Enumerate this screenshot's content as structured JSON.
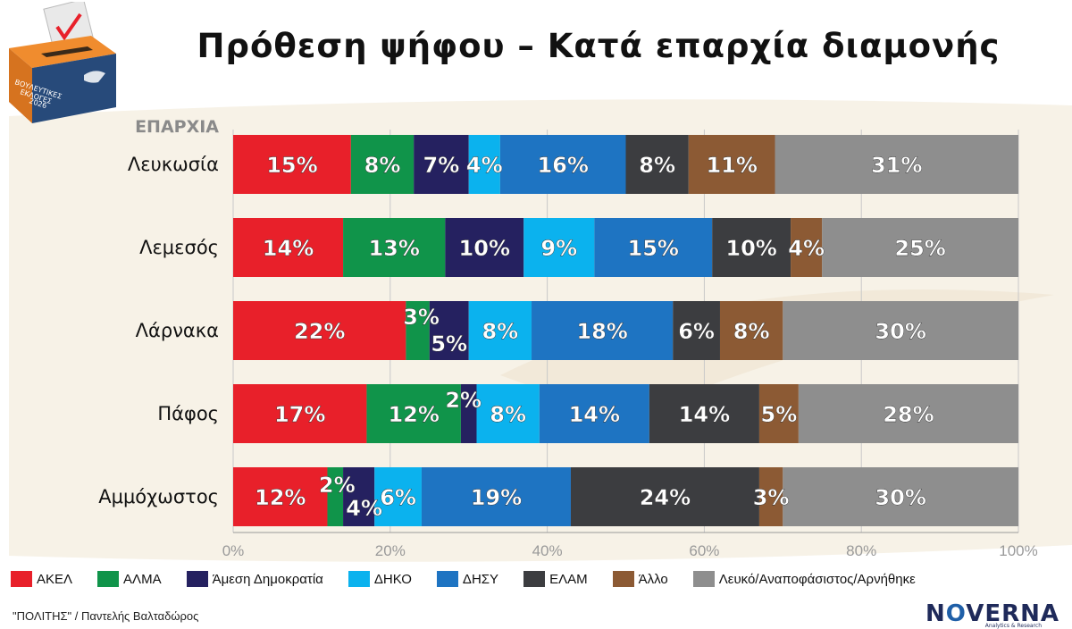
{
  "header": {
    "title": "Πρόθεση ψήφου – Κατά επαρχία διαμονής",
    "ballot_box": {
      "line1": "ΒΟΥΛΕΥΤΙΚΕΣ",
      "line2": "ΕΚΛΟΓΕΣ",
      "line3": "2026"
    }
  },
  "chart_data": {
    "type": "bar",
    "orientation": "horizontal",
    "stacked": true,
    "category_axis_label": "ΕΠΑΡΧΙΑ",
    "categories": [
      "Λευκωσία",
      "Λεμεσός",
      "Λάρνακα",
      "Πάφος",
      "Αμμόχωστος"
    ],
    "xlim": [
      0,
      100
    ],
    "x_ticks": [
      0,
      20,
      40,
      60,
      80,
      100
    ],
    "x_tick_labels": [
      "0%",
      "20%",
      "40%",
      "60%",
      "80%",
      "100%"
    ],
    "legend_position": "bottom",
    "series": [
      {
        "name": "ΑΚΕΛ",
        "color": "#e8202a",
        "values": [
          15,
          14,
          22,
          17,
          12
        ],
        "labels": [
          "15%",
          "14%",
          "22%",
          "17%",
          "12%"
        ]
      },
      {
        "name": "ΑΛΜΑ",
        "color": "#10944a",
        "values": [
          8,
          13,
          3,
          12,
          2
        ],
        "labels": [
          "8%",
          "13%",
          "3%",
          "12%",
          "2%"
        ]
      },
      {
        "name": "Άμεση Δημοκρατία",
        "color": "#252160",
        "values": [
          7,
          10,
          5,
          2,
          4
        ],
        "labels": [
          "7%",
          "10%",
          "5%",
          "2%",
          "4%"
        ]
      },
      {
        "name": "ΔΗΚΟ",
        "color": "#0bb2ee",
        "values": [
          4,
          9,
          8,
          8,
          6
        ],
        "labels": [
          "4%",
          "9%",
          "8%",
          "8%",
          "6%"
        ]
      },
      {
        "name": "ΔΗΣΥ",
        "color": "#1e74c2",
        "values": [
          16,
          15,
          18,
          14,
          19
        ],
        "labels": [
          "16%",
          "15%",
          "18%",
          "14%",
          "19%"
        ]
      },
      {
        "name": "ΕΛΑΜ",
        "color": "#3c3d40",
        "values": [
          8,
          10,
          6,
          14,
          24
        ],
        "labels": [
          "8%",
          "10%",
          "6%",
          "14%",
          "24%"
        ]
      },
      {
        "name": "Άλλο",
        "color": "#8c5a34",
        "values": [
          11,
          4,
          8,
          5,
          3
        ],
        "labels": [
          "11%",
          "4%",
          "8%",
          "5%",
          "3%"
        ]
      },
      {
        "name": "Λευκό/Αναποφάσιστος/Αρνήθηκε",
        "color": "#8e8e8e",
        "values": [
          31,
          25,
          30,
          28,
          30
        ],
        "labels": [
          "31%",
          "25%",
          "30%",
          "28%",
          "30%"
        ]
      }
    ]
  },
  "footer": {
    "source": "\"ΠΟΛΙΤΗΣ\" / Παντελής Βαλταδώρος",
    "brand_pre": "N",
    "brand_o": "O",
    "brand_post": "VERNA",
    "brand_sub": "Analytics & Research"
  }
}
